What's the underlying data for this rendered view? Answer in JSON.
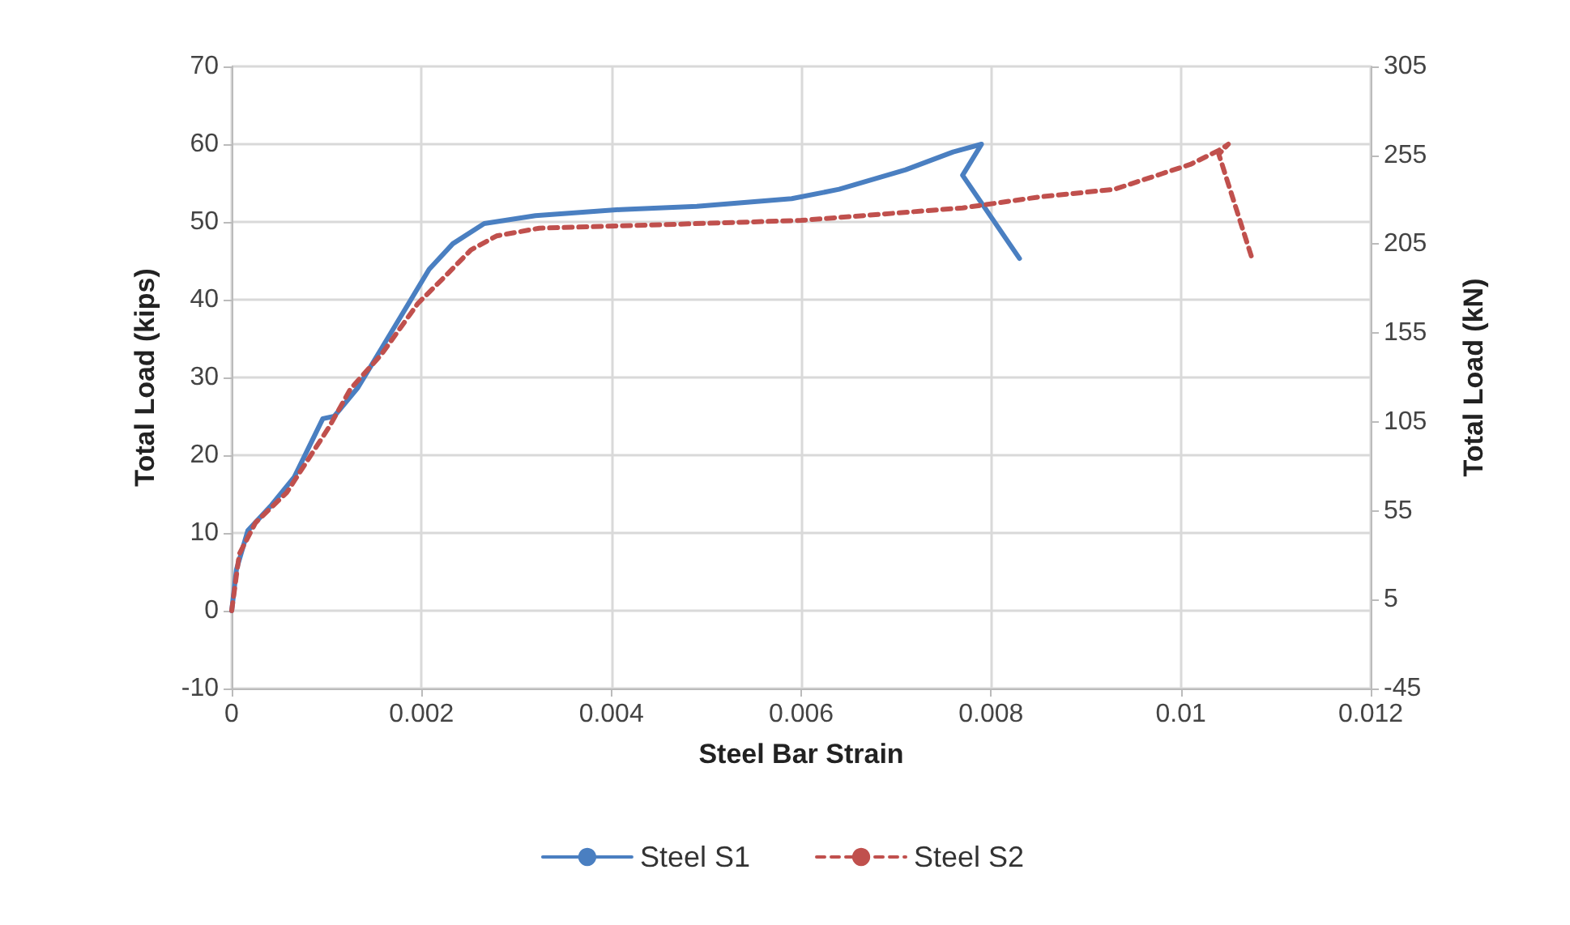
{
  "chart_data": {
    "type": "line",
    "xlabel": "Steel Bar Strain",
    "ylabel": "Total Load (kips)",
    "y2label": "Total Load (kN)",
    "xlim": [
      0,
      0.012
    ],
    "xticks": [
      0,
      0.002,
      0.004,
      0.006,
      0.008,
      0.01,
      0.012
    ],
    "ylim": [
      -10,
      70
    ],
    "yticks": [
      -10,
      0,
      10,
      20,
      30,
      40,
      50,
      60,
      70
    ],
    "y2lim": [
      -45,
      305
    ],
    "y2ticks": [
      -45,
      5,
      55,
      105,
      155,
      205,
      255,
      305
    ],
    "grid": true,
    "legend": "bottom",
    "marker": "none",
    "series": [
      {
        "name": "Steel S1",
        "color": "#4a7fc1",
        "line_style": "solid",
        "x": [
          0,
          5e-05,
          0.00017,
          0.00042,
          0.00066,
          0.00096,
          0.00108,
          0.00133,
          0.00174,
          0.00208,
          0.00233,
          0.00266,
          0.0032,
          0.0041,
          0.0049,
          0.0059,
          0.0064,
          0.0071,
          0.0076,
          0.0079,
          0.0077,
          0.0083
        ],
        "values": [
          0,
          5.3,
          10.3,
          13.6,
          17.2,
          24.7,
          25,
          28.7,
          37,
          43.9,
          47.2,
          49.8,
          50.8,
          51.6,
          52,
          53,
          54.2,
          56.7,
          59,
          60,
          56,
          45.3
        ]
      },
      {
        "name": "Steel S2",
        "color": "#c0504d",
        "line_style": "dashed",
        "x": [
          0,
          8e-05,
          0.00025,
          0.00058,
          0.00103,
          0.00125,
          0.00158,
          0.00196,
          0.00224,
          0.00252,
          0.00279,
          0.00324,
          0.0044,
          0.006,
          0.0077,
          0.0085,
          0.0093,
          0.0098,
          0.0101,
          0.0104,
          0.0105,
          0.0104,
          0.01075
        ],
        "values": [
          0,
          7.3,
          11.3,
          15.2,
          23.7,
          28.5,
          33,
          39.5,
          42.9,
          46.4,
          48.2,
          49.2,
          49.6,
          50.2,
          51.8,
          53.2,
          54.2,
          56.2,
          57.4,
          59.2,
          60,
          58.7,
          45.3
        ]
      }
    ]
  }
}
